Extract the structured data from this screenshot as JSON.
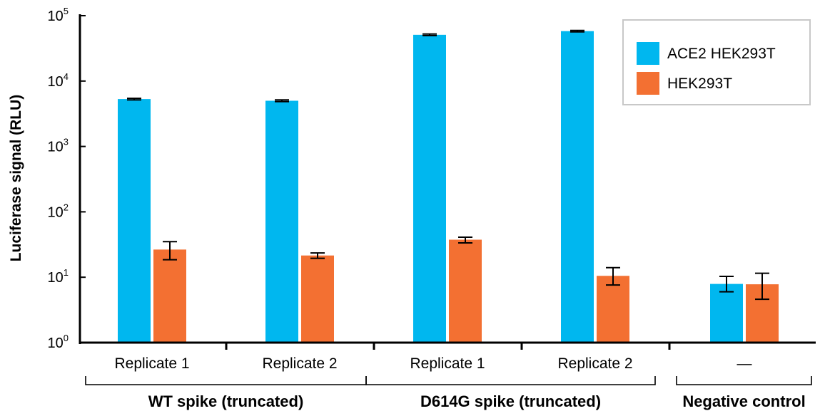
{
  "chart_data": {
    "type": "bar",
    "yscale": "log",
    "ylim": [
      1,
      100000
    ],
    "ylabel": "Luciferase signal (RLU)",
    "y_ticks": [
      {
        "base": "10",
        "exp": "0",
        "value": 1
      },
      {
        "base": "10",
        "exp": "1",
        "value": 10
      },
      {
        "base": "10",
        "exp": "2",
        "value": 100
      },
      {
        "base": "10",
        "exp": "3",
        "value": 1000
      },
      {
        "base": "10",
        "exp": "4",
        "value": 10000
      },
      {
        "base": "10",
        "exp": "5",
        "value": 100000
      }
    ],
    "categories": [
      "Replicate 1",
      "Replicate 2",
      "Replicate 1",
      "Replicate 2",
      "—"
    ],
    "groups": [
      {
        "label": "WT spike (truncated)",
        "categories": [
          0,
          1
        ]
      },
      {
        "label": "D614G spike (truncated)",
        "categories": [
          2,
          3
        ]
      },
      {
        "label": "Negative control",
        "categories": [
          4
        ]
      }
    ],
    "series": [
      {
        "name": "ACE2 HEK293T",
        "color": "#00b7ef",
        "values": [
          5300,
          5000,
          51000,
          58000,
          7.9
        ],
        "error_low": [
          5150,
          4850,
          49500,
          56500,
          6.0
        ],
        "error_high": [
          5450,
          5150,
          52500,
          59500,
          10.3
        ]
      },
      {
        "name": "HEK293T",
        "color": "#f37032",
        "values": [
          26.5,
          21.5,
          37.5,
          10.5,
          7.8
        ],
        "error_low": [
          18.5,
          19.5,
          33.5,
          7.6,
          4.6
        ],
        "error_high": [
          35,
          23.5,
          41,
          14,
          11.5
        ]
      }
    ],
    "legend": {
      "position": "top-right"
    },
    "grid": false
  }
}
